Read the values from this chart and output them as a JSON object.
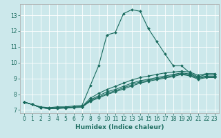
{
  "xlabel": "Humidex (Indice chaleur)",
  "ylabel": "",
  "bg_color": "#cce8eb",
  "grid_color": "#b0d8dc",
  "line_color": "#1a6b5e",
  "xlim": [
    -0.5,
    23.5
  ],
  "ylim": [
    6.8,
    13.7
  ],
  "xticks": [
    0,
    1,
    2,
    3,
    4,
    5,
    6,
    7,
    8,
    9,
    10,
    11,
    12,
    13,
    14,
    15,
    16,
    17,
    18,
    19,
    20,
    21,
    22,
    23
  ],
  "yticks": [
    7,
    8,
    9,
    10,
    11,
    12,
    13
  ],
  "lines": [
    {
      "x": [
        0,
        1,
        2,
        3,
        4,
        5,
        6,
        7,
        8,
        9,
        10,
        11,
        12,
        13,
        14,
        15,
        16,
        17,
        18,
        19,
        20,
        21,
        22,
        23
      ],
      "y": [
        7.5,
        7.35,
        7.2,
        7.15,
        7.2,
        7.2,
        7.25,
        7.3,
        8.55,
        9.8,
        11.75,
        11.9,
        13.1,
        13.35,
        13.25,
        12.15,
        11.35,
        10.55,
        9.8,
        9.8,
        9.35,
        9.1,
        9.25,
        9.25
      ]
    },
    {
      "x": [
        0,
        1,
        2,
        3,
        4,
        5,
        6,
        7,
        8,
        9,
        10,
        11,
        12,
        13,
        14,
        15,
        16,
        17,
        18,
        19,
        20,
        21,
        22,
        23
      ],
      "y": [
        7.5,
        7.35,
        7.15,
        7.1,
        7.15,
        7.15,
        7.18,
        7.22,
        7.75,
        8.05,
        8.3,
        8.5,
        8.7,
        8.9,
        9.05,
        9.15,
        9.25,
        9.35,
        9.4,
        9.45,
        9.4,
        9.2,
        9.3,
        9.3
      ]
    },
    {
      "x": [
        0,
        1,
        2,
        3,
        4,
        5,
        6,
        7,
        8,
        9,
        10,
        11,
        12,
        13,
        14,
        15,
        16,
        17,
        18,
        19,
        20,
        21,
        22,
        23
      ],
      "y": [
        7.5,
        7.35,
        7.15,
        7.1,
        7.15,
        7.15,
        7.18,
        7.2,
        7.65,
        7.9,
        8.15,
        8.3,
        8.5,
        8.7,
        8.85,
        8.95,
        9.05,
        9.15,
        9.25,
        9.35,
        9.28,
        9.05,
        9.15,
        9.15
      ]
    },
    {
      "x": [
        0,
        1,
        2,
        3,
        4,
        5,
        6,
        7,
        8,
        9,
        10,
        11,
        12,
        13,
        14,
        15,
        16,
        17,
        18,
        19,
        20,
        21,
        22,
        23
      ],
      "y": [
        7.5,
        7.35,
        7.15,
        7.1,
        7.1,
        7.15,
        7.18,
        7.2,
        7.6,
        7.82,
        8.05,
        8.22,
        8.4,
        8.6,
        8.78,
        8.88,
        8.98,
        9.08,
        9.18,
        9.3,
        9.22,
        9.0,
        9.1,
        9.1
      ]
    },
    {
      "x": [
        0,
        1,
        2,
        3,
        4,
        5,
        6,
        7,
        8,
        9,
        10,
        11,
        12,
        13,
        14,
        15,
        16,
        17,
        18,
        19,
        20,
        21,
        22,
        23
      ],
      "y": [
        7.5,
        7.35,
        7.15,
        7.1,
        7.1,
        7.12,
        7.15,
        7.18,
        7.55,
        7.76,
        7.98,
        8.15,
        8.33,
        8.52,
        8.7,
        8.82,
        8.92,
        9.02,
        9.12,
        9.25,
        9.16,
        8.95,
        9.05,
        9.05
      ]
    }
  ],
  "marker": "D",
  "markersize": 2.0,
  "linewidth": 0.8,
  "xlabel_fontsize": 6.5,
  "tick_fontsize": 5.5
}
